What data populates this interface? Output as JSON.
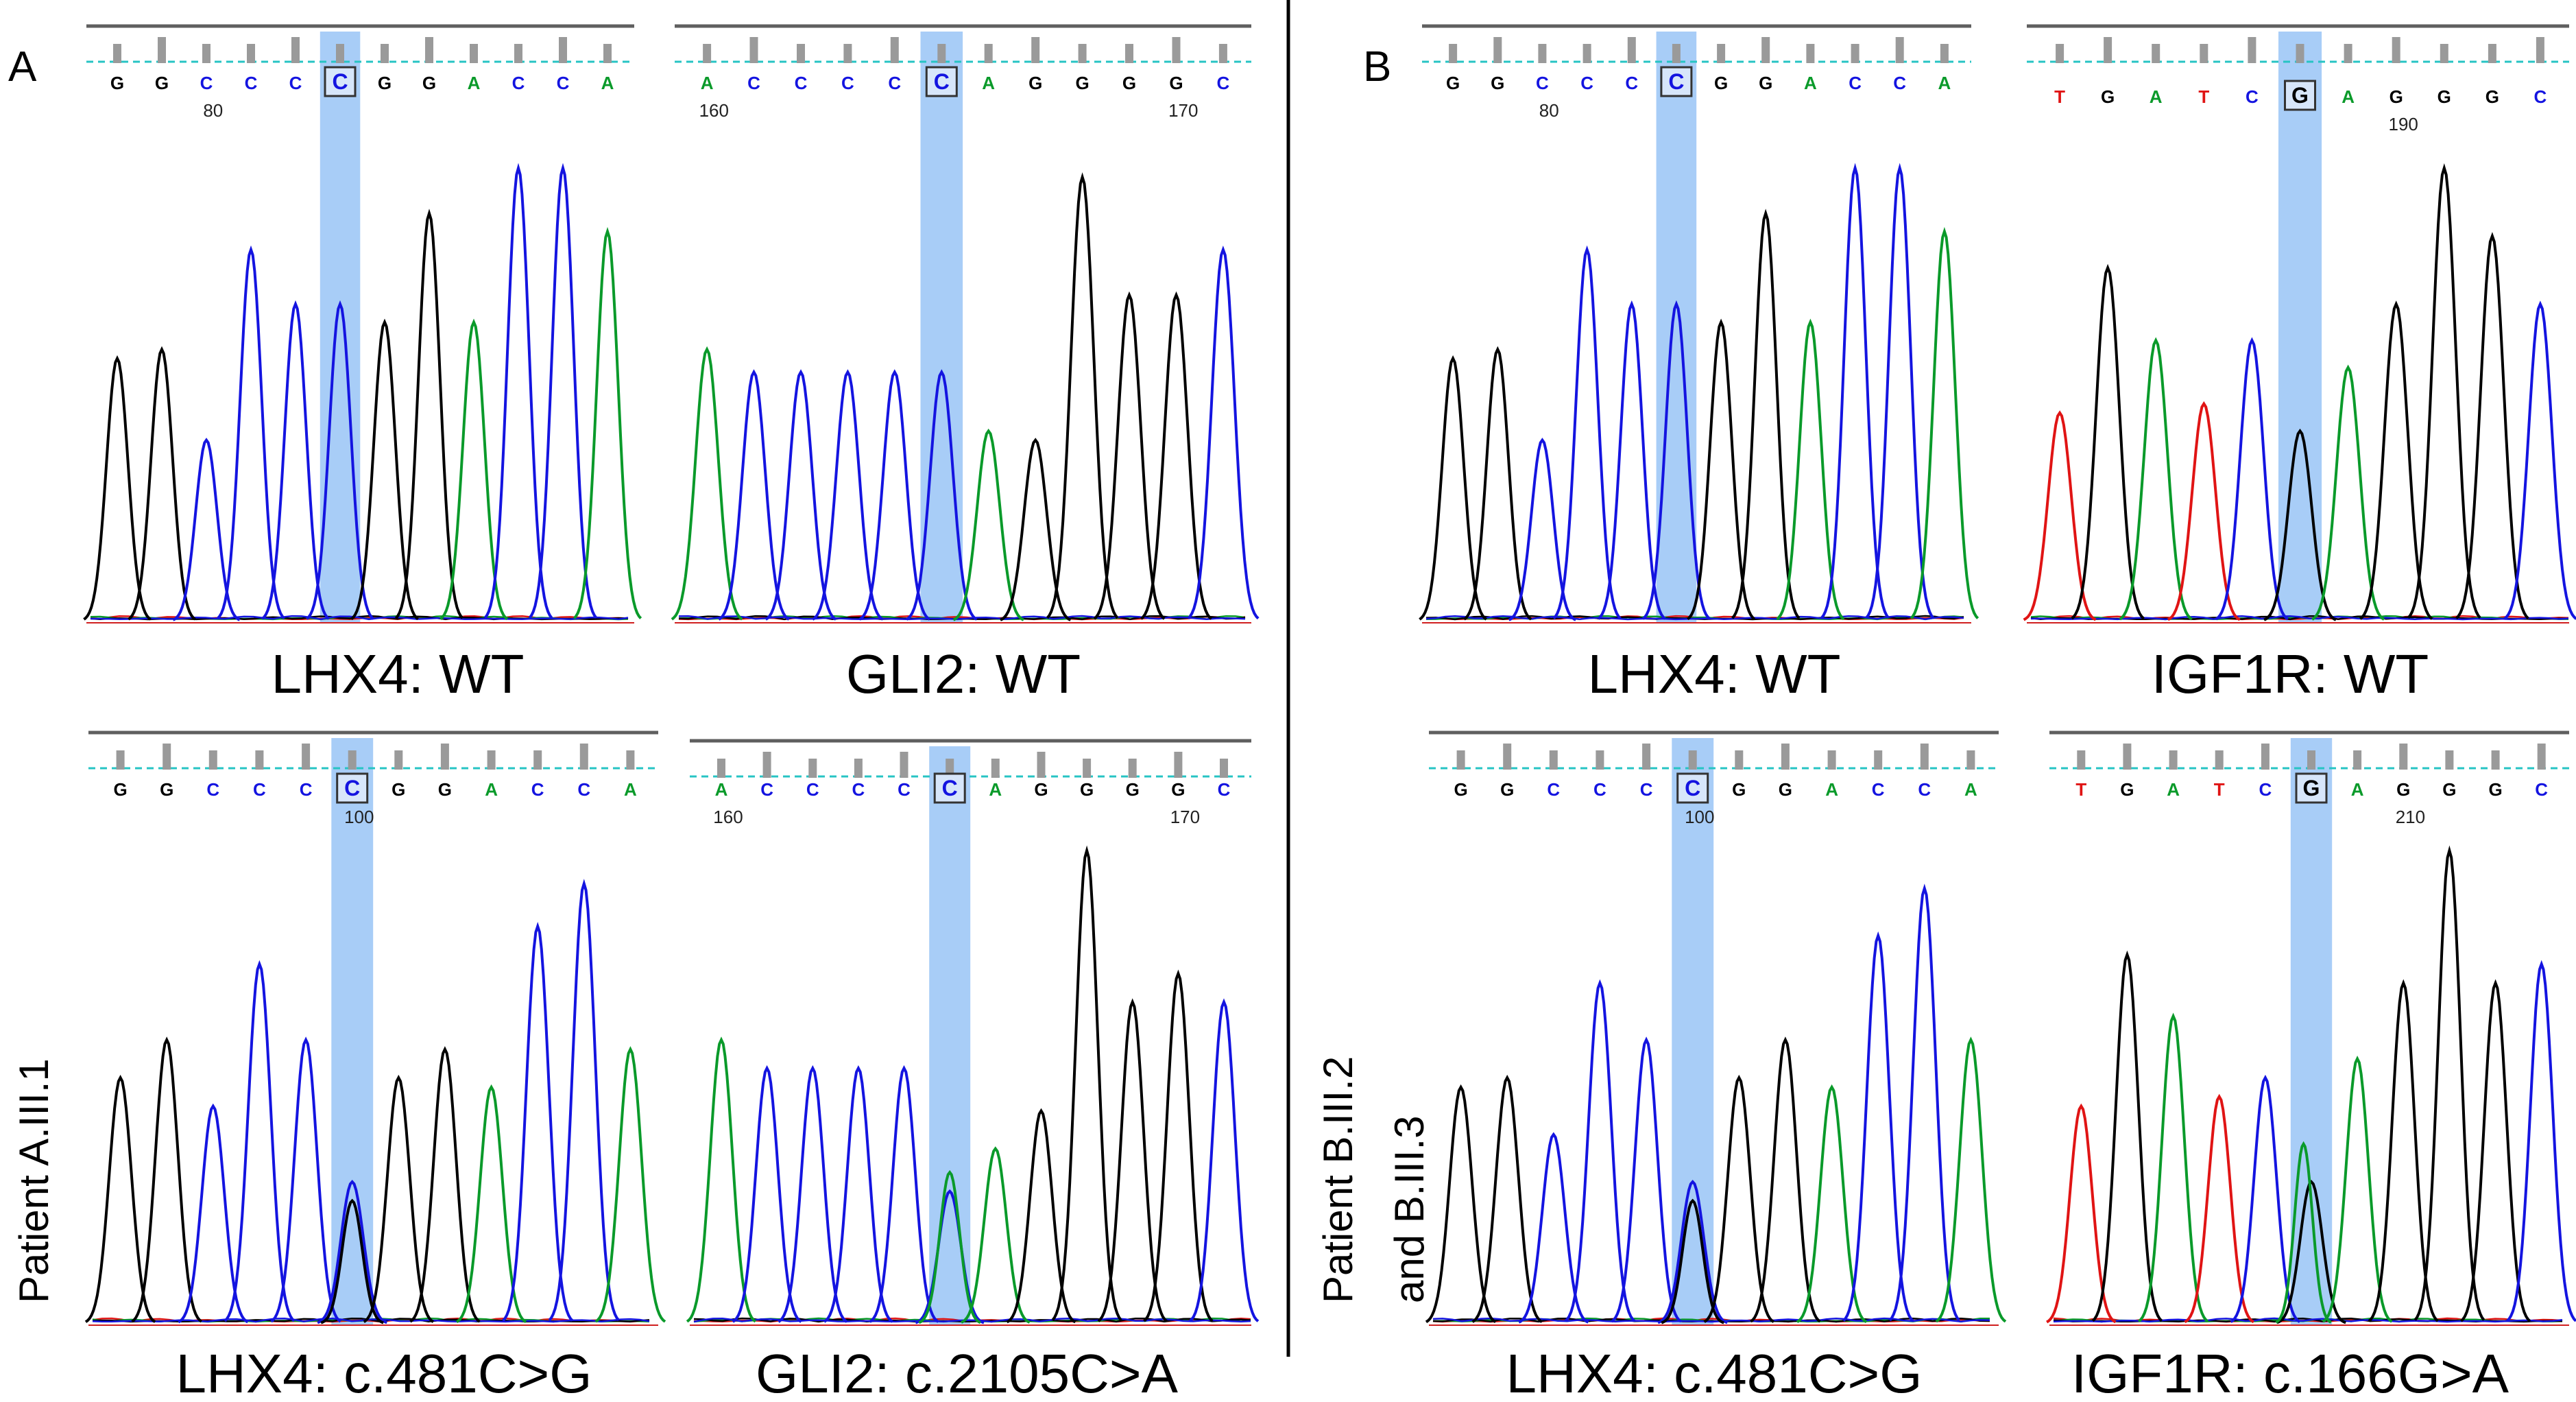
{
  "panels": {
    "a_letter": "A",
    "b_letter": "B"
  },
  "patients": {
    "a": "Patient A.III.1",
    "b_line1": "Patient B.III.2",
    "b_line2": "and B.III.3"
  },
  "colors": {
    "A": "#0a9a2a",
    "C": "#1414e0",
    "G": "#000000",
    "T": "#e01414",
    "highlight": "#a8cdf7",
    "baseline_ref": "#27c4c4"
  },
  "traces": [
    {
      "id": "a-top-left",
      "caption": "LHX4: WT",
      "bases": [
        "G",
        "G",
        "C",
        "C",
        "C",
        "C",
        "G",
        "G",
        "A",
        "C",
        "C",
        "A"
      ],
      "highlight_index": 5,
      "position_labels": [
        {
          "after_index": 2,
          "text": "80"
        }
      ],
      "peaks": [
        0.58,
        0.6,
        0.4,
        0.82,
        0.7,
        0.7,
        0.66,
        0.9,
        0.66,
        1.0,
        1.0,
        0.86
      ]
    },
    {
      "id": "a-top-right",
      "caption": "GLI2: WT",
      "bases": [
        "A",
        "C",
        "C",
        "C",
        "C",
        "C",
        "A",
        "G",
        "G",
        "G",
        "G",
        "C"
      ],
      "highlight_index": 5,
      "position_labels": [
        {
          "after_index": 0,
          "text": "160"
        },
        {
          "after_index": 10,
          "text": "170"
        }
      ],
      "peaks": [
        0.6,
        0.55,
        0.55,
        0.55,
        0.55,
        0.55,
        0.42,
        0.4,
        0.98,
        0.72,
        0.72,
        0.82
      ]
    },
    {
      "id": "a-bottom-left",
      "caption": "LHX4: c.481C>G",
      "bases": [
        "G",
        "G",
        "C",
        "C",
        "C",
        "C",
        "G",
        "G",
        "A",
        "C",
        "C",
        "A"
      ],
      "highlight_index": 5,
      "position_labels": [
        {
          "after_index": 5,
          "text": "100"
        }
      ],
      "peaks": [
        0.52,
        0.6,
        0.46,
        0.76,
        0.6,
        0.3,
        0.52,
        0.58,
        0.5,
        0.84,
        0.93,
        0.58
      ]
    },
    {
      "id": "a-bottom-right",
      "caption": "GLI2: c.2105C>A",
      "bases": [
        "A",
        "C",
        "C",
        "C",
        "C",
        "C",
        "A",
        "G",
        "G",
        "G",
        "G",
        "C"
      ],
      "highlight_index": 5,
      "position_labels": [
        {
          "after_index": 0,
          "text": "160"
        },
        {
          "after_index": 10,
          "text": "170"
        }
      ],
      "peaks": [
        0.6,
        0.54,
        0.54,
        0.54,
        0.54,
        0.28,
        0.37,
        0.45,
        1.0,
        0.68,
        0.74,
        0.68
      ]
    },
    {
      "id": "b-top-left",
      "caption": "LHX4: WT",
      "bases": [
        "G",
        "G",
        "C",
        "C",
        "C",
        "C",
        "G",
        "G",
        "A",
        "C",
        "C",
        "A"
      ],
      "highlight_index": 5,
      "position_labels": [
        {
          "after_index": 2,
          "text": "80"
        }
      ],
      "peaks": [
        0.58,
        0.6,
        0.4,
        0.82,
        0.7,
        0.7,
        0.66,
        0.9,
        0.66,
        1.0,
        1.0,
        0.86
      ]
    },
    {
      "id": "b-top-right",
      "caption": "IGF1R: WT",
      "bases": [
        "T",
        "G",
        "A",
        "T",
        "C",
        "G",
        "A",
        "G",
        "G",
        "G",
        "C"
      ],
      "highlight_index": 5,
      "position_labels": [
        {
          "after_index": 7,
          "text": "190"
        }
      ],
      "peaks": [
        0.46,
        0.78,
        0.62,
        0.48,
        0.62,
        0.42,
        0.56,
        0.7,
        1.0,
        0.85,
        0.7
      ]
    },
    {
      "id": "b-bottom-left",
      "caption": "LHX4: c.481C>G",
      "bases": [
        "G",
        "G",
        "C",
        "C",
        "C",
        "C",
        "G",
        "G",
        "A",
        "C",
        "C",
        "A"
      ],
      "highlight_index": 5,
      "position_labels": [
        {
          "after_index": 5,
          "text": "100"
        }
      ],
      "peaks": [
        0.5,
        0.52,
        0.4,
        0.72,
        0.6,
        0.3,
        0.52,
        0.6,
        0.5,
        0.82,
        0.92,
        0.6
      ]
    },
    {
      "id": "b-bottom-right",
      "caption": "IGF1R: c.166G>A",
      "bases": [
        "T",
        "G",
        "A",
        "T",
        "C",
        "G",
        "A",
        "G",
        "G",
        "G",
        "C"
      ],
      "highlight_index": 5,
      "position_labels": [
        {
          "after_index": 7,
          "text": "210"
        }
      ],
      "peaks": [
        0.46,
        0.78,
        0.65,
        0.48,
        0.52,
        0.3,
        0.56,
        0.72,
        1.0,
        0.72,
        0.76
      ]
    }
  ]
}
